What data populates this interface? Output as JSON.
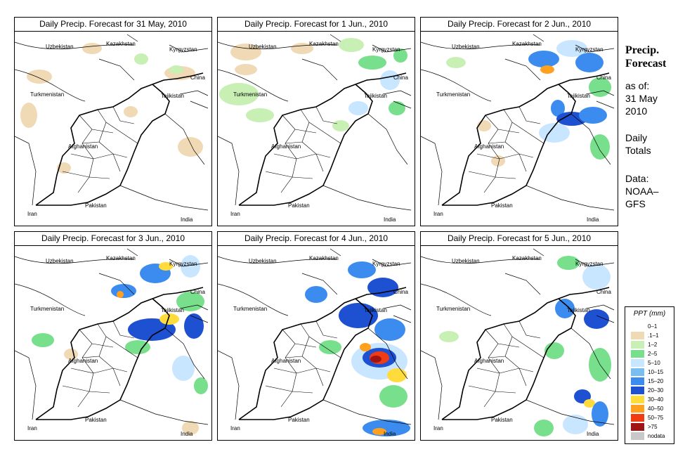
{
  "panels": [
    {
      "title": "Daily Precip. Forecast for  31 May, 2010"
    },
    {
      "title": "Daily Precip. Forecast for  1 Jun., 2010"
    },
    {
      "title": "Daily Precip. Forecast for  2 Jun., 2010"
    },
    {
      "title": "Daily Precip. Forecast for  3 Jun., 2010"
    },
    {
      "title": "Daily Precip. Forecast for  4 Jun., 2010"
    },
    {
      "title": "Daily Precip. Forecast for  5 Jun., 2010"
    }
  ],
  "map_labels": {
    "kazakhstan": "Kazakhstan",
    "uzbekistan": "Uzbekistan",
    "kyrgyzstan": "Kyrgyzstan",
    "china": "China",
    "turkmenistan": "Turkmenistan",
    "tajikistan": "Tajikistan",
    "afghanistan": "Afghanistan",
    "pakistan": "Pakistan",
    "iran": "Iran",
    "india": "India"
  },
  "sidebar": {
    "title_line1": "Precip.",
    "title_line2": "Forecast",
    "asof": "as of:",
    "date_line1": "31 May",
    "date_line2": "2010",
    "totals_line1": "Daily",
    "totals_line2": "Totals",
    "data_line1": "Data:",
    "data_line2": "NOAA–",
    "data_line3": "GFS"
  },
  "legend": {
    "title": "PPT (mm)",
    "items": [
      {
        "label": "0–1",
        "color": "#ffffff"
      },
      {
        "label": ".1–1",
        "color": "#f0d9b5"
      },
      {
        "label": "1–2",
        "color": "#c8f0b4"
      },
      {
        "label": "2–5",
        "color": "#78e08c"
      },
      {
        "label": "5–10",
        "color": "#c8e6ff"
      },
      {
        "label": "10–15",
        "color": "#78bef0"
      },
      {
        "label": "15–20",
        "color": "#3c8cf0"
      },
      {
        "label": "20–30",
        "color": "#1e50d2"
      },
      {
        "label": "30–40",
        "color": "#ffdc3c"
      },
      {
        "label": "40–50",
        "color": "#ffa01e"
      },
      {
        "label": "50–75",
        "color": "#f03c14"
      },
      {
        "label": ">75",
        "color": "#a01414"
      },
      {
        "label": "nodata",
        "color": "#c8c8c8"
      }
    ]
  }
}
